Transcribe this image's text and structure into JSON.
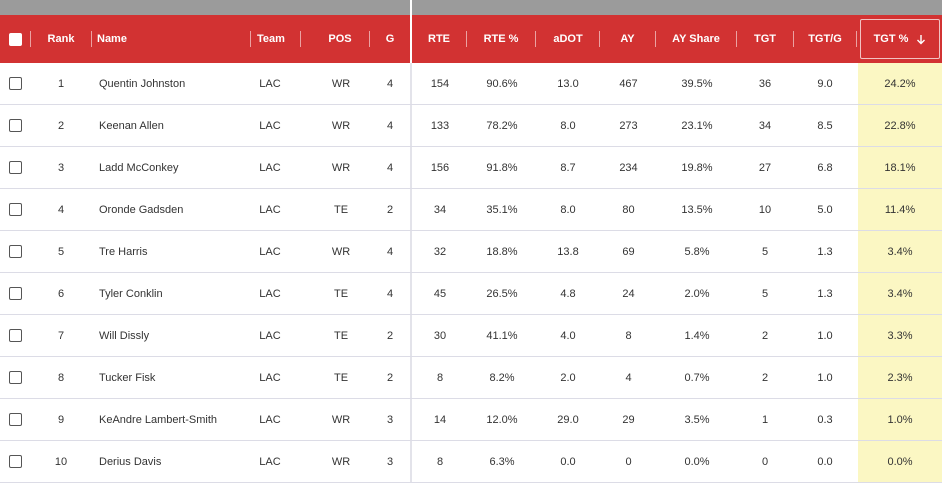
{
  "table": {
    "columns": {
      "rank": "Rank",
      "name": "Name",
      "team": "Team",
      "pos": "POS",
      "g": "G",
      "rte": "RTE",
      "rte_pct": "RTE %",
      "adot": "aDOT",
      "ay": "AY",
      "ay_share": "AY Share",
      "tgt": "TGT",
      "tgt_g": "TGT/G",
      "tgt_pct": "TGT %"
    },
    "sort_icon": "arrow-down-icon",
    "highlight_color": "#fbf7c3",
    "header_color": "#d23232",
    "rows": [
      {
        "rank": "1",
        "name": "Quentin Johnston",
        "team": "LAC",
        "pos": "WR",
        "g": "4",
        "rte": "154",
        "rte_pct": "90.6%",
        "adot": "13.0",
        "ay": "467",
        "ay_share": "39.5%",
        "tgt": "36",
        "tgt_g": "9.0",
        "tgt_pct": "24.2%"
      },
      {
        "rank": "2",
        "name": "Keenan Allen",
        "team": "LAC",
        "pos": "WR",
        "g": "4",
        "rte": "133",
        "rte_pct": "78.2%",
        "adot": "8.0",
        "ay": "273",
        "ay_share": "23.1%",
        "tgt": "34",
        "tgt_g": "8.5",
        "tgt_pct": "22.8%"
      },
      {
        "rank": "3",
        "name": "Ladd McConkey",
        "team": "LAC",
        "pos": "WR",
        "g": "4",
        "rte": "156",
        "rte_pct": "91.8%",
        "adot": "8.7",
        "ay": "234",
        "ay_share": "19.8%",
        "tgt": "27",
        "tgt_g": "6.8",
        "tgt_pct": "18.1%"
      },
      {
        "rank": "4",
        "name": "Oronde Gadsden",
        "team": "LAC",
        "pos": "TE",
        "g": "2",
        "rte": "34",
        "rte_pct": "35.1%",
        "adot": "8.0",
        "ay": "80",
        "ay_share": "13.5%",
        "tgt": "10",
        "tgt_g": "5.0",
        "tgt_pct": "11.4%"
      },
      {
        "rank": "5",
        "name": "Tre Harris",
        "team": "LAC",
        "pos": "WR",
        "g": "4",
        "rte": "32",
        "rte_pct": "18.8%",
        "adot": "13.8",
        "ay": "69",
        "ay_share": "5.8%",
        "tgt": "5",
        "tgt_g": "1.3",
        "tgt_pct": "3.4%"
      },
      {
        "rank": "6",
        "name": "Tyler Conklin",
        "team": "LAC",
        "pos": "TE",
        "g": "4",
        "rte": "45",
        "rte_pct": "26.5%",
        "adot": "4.8",
        "ay": "24",
        "ay_share": "2.0%",
        "tgt": "5",
        "tgt_g": "1.3",
        "tgt_pct": "3.4%"
      },
      {
        "rank": "7",
        "name": "Will Dissly",
        "team": "LAC",
        "pos": "TE",
        "g": "2",
        "rte": "30",
        "rte_pct": "41.1%",
        "adot": "4.0",
        "ay": "8",
        "ay_share": "1.4%",
        "tgt": "2",
        "tgt_g": "1.0",
        "tgt_pct": "3.3%"
      },
      {
        "rank": "8",
        "name": "Tucker Fisk",
        "team": "LAC",
        "pos": "TE",
        "g": "2",
        "rte": "8",
        "rte_pct": "8.2%",
        "adot": "2.0",
        "ay": "4",
        "ay_share": "0.7%",
        "tgt": "2",
        "tgt_g": "1.0",
        "tgt_pct": "2.3%"
      },
      {
        "rank": "9",
        "name": "KeAndre Lambert-Smith",
        "team": "LAC",
        "pos": "WR",
        "g": "3",
        "rte": "14",
        "rte_pct": "12.0%",
        "adot": "29.0",
        "ay": "29",
        "ay_share": "3.5%",
        "tgt": "1",
        "tgt_g": "0.3",
        "tgt_pct": "1.0%"
      },
      {
        "rank": "10",
        "name": "Derius Davis",
        "team": "LAC",
        "pos": "WR",
        "g": "3",
        "rte": "8",
        "rte_pct": "6.3%",
        "adot": "0.0",
        "ay": "0",
        "ay_share": "0.0%",
        "tgt": "0",
        "tgt_g": "0.0",
        "tgt_pct": "0.0%"
      }
    ]
  }
}
